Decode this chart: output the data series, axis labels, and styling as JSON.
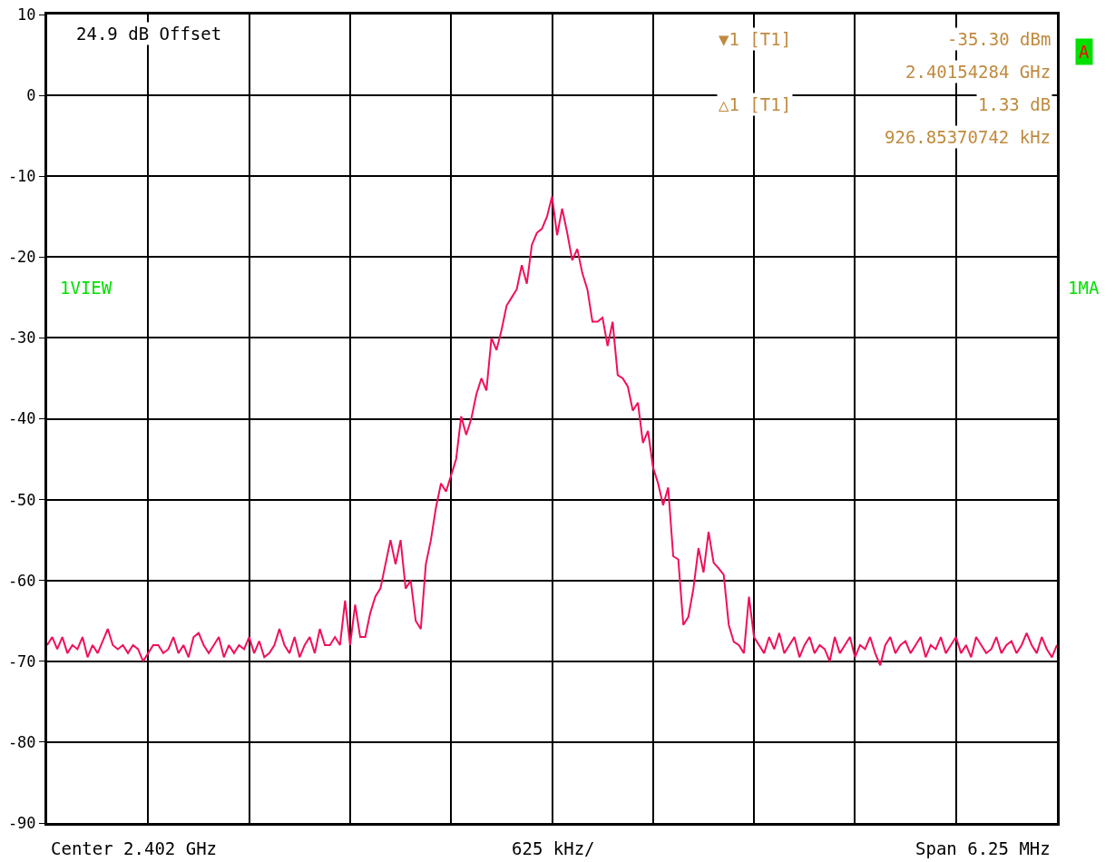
{
  "chart_data": {
    "type": "line",
    "categories": [
      null,
      null,
      null,
      null,
      null,
      null,
      null,
      null,
      null,
      null,
      null,
      null,
      null,
      null,
      null,
      null,
      null,
      null,
      null,
      null,
      null,
      null,
      null,
      null,
      null,
      null,
      null,
      null,
      null,
      null,
      null,
      null,
      null,
      null,
      null,
      null,
      null,
      null,
      null,
      null,
      null,
      null,
      null,
      null,
      null,
      null,
      null,
      null,
      null,
      null,
      null,
      null,
      null,
      null,
      null,
      null,
      null,
      null,
      null,
      null,
      null,
      null,
      null,
      null,
      null,
      null,
      null,
      null,
      null,
      null,
      null,
      null,
      null,
      null,
      null,
      null,
      null,
      null,
      null,
      null,
      null,
      null,
      null,
      null,
      null,
      null,
      null,
      null,
      null,
      null,
      null,
      null,
      null,
      null,
      null,
      null,
      null,
      null,
      null,
      null,
      null,
      null,
      null,
      null,
      null,
      null,
      null,
      null,
      null,
      null,
      null,
      null,
      null,
      null,
      null,
      null,
      null,
      null,
      null,
      null,
      null,
      null,
      null,
      null,
      null,
      null,
      null,
      null,
      null,
      null,
      null,
      null,
      null,
      null,
      null,
      null,
      null,
      null,
      null,
      null,
      null,
      null,
      null,
      null,
      null,
      null,
      null,
      null,
      null,
      null,
      null,
      null,
      null,
      null,
      null,
      null,
      null,
      null,
      null,
      null,
      null,
      null,
      null,
      null,
      null,
      null,
      null,
      null,
      null,
      null,
      null,
      null,
      null,
      null,
      null,
      null,
      null,
      null,
      null,
      null,
      null,
      null,
      null,
      null,
      null,
      null,
      null,
      null,
      null,
      null,
      null,
      null,
      null,
      null,
      null,
      null,
      null,
      null,
      null,
      null,
      null
    ],
    "series": [
      {
        "color": "#f0105a",
        "values": [
          -68,
          -67,
          -68.5,
          -67,
          -69,
          -68,
          -68.5,
          -67,
          -69.5,
          -68,
          -69,
          -67.5,
          -66,
          -68,
          -68.5,
          -68,
          -69,
          -68,
          -68.5,
          -70,
          -69,
          -68,
          -68,
          -69,
          -68.5,
          -67,
          -69,
          -68,
          -69.5,
          -67,
          -66.5,
          -68,
          -69,
          -68,
          -67,
          -69.5,
          -68,
          -69,
          -68,
          -68.5,
          -67,
          -69,
          -67.5,
          -69.5,
          -69,
          -68,
          -66,
          -68,
          -69,
          -67,
          -69.5,
          -68,
          -67,
          -69,
          -66,
          -68,
          -68,
          -67,
          -68,
          -62.5,
          -68,
          -63,
          -67,
          -67,
          -64,
          -62,
          -61,
          -58,
          -55,
          -58,
          -55,
          -61,
          -60,
          -65,
          -66,
          -58,
          -55,
          -51,
          -48,
          -49,
          -47,
          -45,
          -39.7,
          -42,
          -40,
          -37,
          -35,
          -36.5,
          -30,
          -31.5,
          -29,
          -26,
          -25,
          -24,
          -21,
          -23.3,
          -18.5,
          -17,
          -16.5,
          -15,
          -12.5,
          -17.3,
          -14,
          -17,
          -20.4,
          -19,
          -22,
          -24,
          -28,
          -28,
          -27.5,
          -31,
          -28,
          -34.6,
          -35,
          -36,
          -39,
          -38,
          -43,
          -41.5,
          -46,
          -48,
          -50.7,
          -48.5,
          -57,
          -57.4,
          -65.5,
          -64.5,
          -61,
          -56,
          -59,
          -54,
          -57.8,
          -58.5,
          -59.3,
          -65.5,
          -67.6,
          -68,
          -69,
          -62,
          -67,
          -68,
          -69,
          -67,
          -68.5,
          -66.5,
          -69,
          -68,
          -67,
          -69.5,
          -68,
          -67,
          -69,
          -68,
          -68.5,
          -70,
          -67,
          -69,
          -68,
          -67,
          -69.5,
          -68,
          -68.5,
          -67,
          -69,
          -70.5,
          -68,
          -67,
          -69,
          -68,
          -67.5,
          -69,
          -68,
          -67,
          -69.5,
          -68,
          -68.5,
          -67,
          -69,
          -68,
          -67,
          -69,
          -68,
          -69.5,
          -67,
          -68,
          -69,
          -68.5,
          -67,
          -69,
          -68,
          -67.5,
          -69,
          -68,
          -66.5,
          -68,
          -69,
          -67,
          -68.5,
          -69.5,
          -68
        ]
      }
    ],
    "ylim": [
      -90,
      10
    ],
    "yticks": [
      -90,
      -80,
      -70,
      -60,
      -50,
      -40,
      -30,
      -20,
      -10,
      0,
      10
    ],
    "grid": true,
    "tick_labels": "y",
    "annotations": [
      "24.9 dB Offset",
      "▼1 [T1]",
      "-35.30 dBm",
      "2.40154284 GHz",
      "△1 [T1]",
      "1.33 dB",
      "926.85370742 kHz",
      "A",
      "1VIEW",
      "1MA",
      "Center 2.402 GHz",
      "625 kHz/",
      "Span 6.25 MHz"
    ]
  }
}
